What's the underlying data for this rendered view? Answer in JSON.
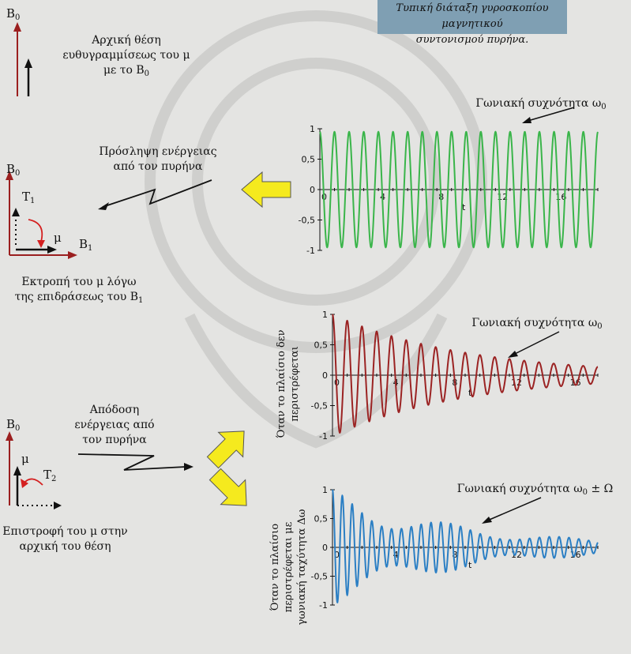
{
  "title": {
    "line1": "Τυπική διάταξη γυροσκοπίου μαγνητικού",
    "line2": "συντονισμού πυρήνα."
  },
  "panel1": {
    "b0": "B",
    "b0_sub": "0",
    "caption_l1": "Αρχική θέση",
    "caption_l2": "ευθυγραμμίσεως του μ",
    "caption_l3": "με το B",
    "caption_l3_sub": "0"
  },
  "panel2": {
    "absorb_l1": "Πρόσληψη ενέργειας",
    "absorb_l2": "από τον πυρήνα",
    "b0": "B",
    "b0_sub": "0",
    "t1": "T",
    "t1_sub": "1",
    "mu": "μ",
    "b1": "B",
    "b1_sub": "1",
    "caption_l1": "Εκτροπή του μ λόγω",
    "caption_l2": "της επιδράσεως του B",
    "caption_l2_sub": "1"
  },
  "panel3": {
    "emit_l1": "Απόδοση",
    "emit_l2": "ενέργειας από",
    "emit_l3": "τον πυρήνα",
    "b0": "B",
    "b0_sub": "0",
    "mu": "μ",
    "t2": "T",
    "t2_sub": "2",
    "caption_l1": "Επιστροφή του μ στην",
    "caption_l2": "αρχική του θέση"
  },
  "side_labels": {
    "middle_l1": "Όταν το πλαίσιο δεν",
    "middle_l2": "περιστρέφεται",
    "bottom_l1": "Όταν το πλαίσιο",
    "bottom_l2": "περιστρέφεται με",
    "bottom_l3": "γωνιακή ταχύτητα Δω"
  },
  "annotations": {
    "top": "Γωνιακή συχνότητα ω",
    "top_sub": "0",
    "middle": "Γωνιακή συχνότητα ω",
    "middle_sub": "0",
    "bottom": "Γωνιακή συχνότητα ω",
    "bottom_sub": "0",
    "bottom_suffix": " ± Ω"
  },
  "colors": {
    "arrow_red": "#9b1f1f",
    "green": "#3ab54a",
    "darkred": "#9b2323",
    "blue": "#2b7fc4",
    "yellow": "#f5ea1e",
    "title_bg": "#7f9fb3"
  },
  "chart_data": [
    {
      "type": "line",
      "name": "top",
      "color": "#3ab54a",
      "xlabel": "t",
      "xlim": [
        0,
        19
      ],
      "ylim": [
        -1,
        1
      ],
      "xticks": [
        0,
        4,
        8,
        12,
        16
      ],
      "xtick_labels": [
        "0",
        "4",
        "8",
        "12",
        "16"
      ],
      "yticks": [
        1,
        0.5,
        0,
        -0.5,
        -1
      ],
      "ytick_labels": [
        "1",
        "0,5",
        "0",
        "-0,5",
        "-1"
      ],
      "function": "cos",
      "omega": 6.28,
      "amplitude": 0.95,
      "decay": 0,
      "beat": 0
    },
    {
      "type": "line",
      "name": "middle",
      "color": "#9b2323",
      "xlabel": "t",
      "xlim": [
        0,
        18
      ],
      "ylim": [
        -1,
        1
      ],
      "xticks": [
        0,
        4,
        8,
        12,
        16
      ],
      "xtick_labels": [
        "0",
        "4",
        "8",
        "12",
        "16"
      ],
      "yticks": [
        1,
        0.5,
        0,
        -0.5,
        -1
      ],
      "ytick_labels": [
        "1",
        "0,5",
        "0",
        "-0,5",
        "-1"
      ],
      "function": "cos",
      "omega": 6.28,
      "amplitude": 1,
      "decay": 0.11,
      "beat": 0
    },
    {
      "type": "line",
      "name": "bottom",
      "color": "#2b7fc4",
      "xlabel": "t",
      "xlim": [
        0,
        18
      ],
      "ylim": [
        -1,
        1
      ],
      "xticks": [
        0,
        4,
        8,
        12,
        16
      ],
      "xtick_labels": [
        "0",
        "4",
        "8",
        "12",
        "16"
      ],
      "yticks": [
        1,
        0.5,
        0,
        -0.5,
        -1
      ],
      "ytick_labels": [
        "1",
        "0,5",
        "0",
        "-0,5",
        "-1"
      ],
      "function": "cos",
      "omega": 9.4,
      "amplitude": 1,
      "decay": 0.11,
      "beat": 0.8
    }
  ]
}
